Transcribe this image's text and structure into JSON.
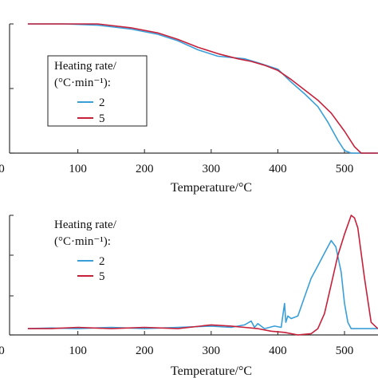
{
  "colors": {
    "series_2": "#3a9fd8",
    "series_5": "#c7203b",
    "axis": "#333333"
  },
  "chart_data": [
    {
      "type": "line",
      "xlabel": "Temperature/°C",
      "ylabel": "",
      "xlim": [
        0,
        550
      ],
      "ylim": [
        0,
        100
      ],
      "xticks": [
        100,
        200,
        300,
        400,
        500
      ],
      "yticks_visible_labels": [
        "",
        "",
        ""
      ],
      "grid": false,
      "legend": {
        "title_line1": "Heating rate/",
        "title_line2": "(°C·min⁻¹):",
        "placement": "left-center",
        "entries": [
          "2",
          "5"
        ]
      },
      "series": [
        {
          "name": "2",
          "x": [
            25,
            80,
            130,
            180,
            220,
            250,
            280,
            310,
            330,
            350,
            370,
            400,
            420,
            440,
            460,
            475,
            490,
            500,
            510,
            530,
            550
          ],
          "y": [
            100,
            100,
            99,
            96,
            92,
            87,
            80,
            75,
            74,
            73,
            70,
            65,
            55,
            46,
            36,
            24,
            10,
            2,
            0,
            0,
            0
          ]
        },
        {
          "name": "5",
          "x": [
            25,
            80,
            130,
            180,
            220,
            250,
            280,
            310,
            340,
            360,
            380,
            400,
            420,
            440,
            460,
            480,
            500,
            515,
            525,
            540,
            550
          ],
          "y": [
            100,
            100,
            100,
            97,
            93,
            88,
            82,
            77,
            73,
            71,
            68,
            64,
            57,
            49,
            41,
            31,
            17,
            5,
            0,
            0,
            0
          ]
        }
      ]
    },
    {
      "type": "line",
      "xlabel": "Temperature/°C",
      "ylabel": "",
      "xlim": [
        0,
        550
      ],
      "ylim": [
        -5,
        90
      ],
      "xticks": [
        100,
        200,
        300,
        400,
        500
      ],
      "grid": false,
      "legend": {
        "title_line1": "Heating rate/",
        "title_line2": "(°C·min⁻¹):",
        "placement": "top-left",
        "entries": [
          "2",
          "5"
        ]
      },
      "series": [
        {
          "name": "2",
          "x": [
            25,
            60,
            100,
            150,
            200,
            250,
            300,
            330,
            350,
            360,
            365,
            370,
            380,
            395,
            405,
            410,
            412,
            415,
            420,
            430,
            440,
            450,
            460,
            470,
            480,
            487,
            495,
            500,
            505,
            510,
            550
          ],
          "y": [
            0,
            0.5,
            0,
            1,
            0,
            1,
            2,
            1,
            3,
            6,
            1,
            4,
            0,
            2,
            1,
            20,
            5,
            10,
            8,
            10,
            25,
            40,
            50,
            60,
            70,
            65,
            45,
            20,
            5,
            0,
            0
          ]
        },
        {
          "name": "5",
          "x": [
            25,
            60,
            100,
            150,
            200,
            250,
            300,
            330,
            350,
            370,
            390,
            410,
            430,
            450,
            460,
            470,
            480,
            490,
            500,
            510,
            515,
            520,
            525,
            530,
            540,
            550
          ],
          "y": [
            0,
            0,
            1,
            0,
            1,
            0,
            3,
            2,
            1,
            0,
            -2,
            -3,
            -5,
            -4,
            0,
            12,
            35,
            58,
            75,
            90,
            88,
            80,
            60,
            40,
            5,
            0
          ]
        }
      ]
    }
  ]
}
